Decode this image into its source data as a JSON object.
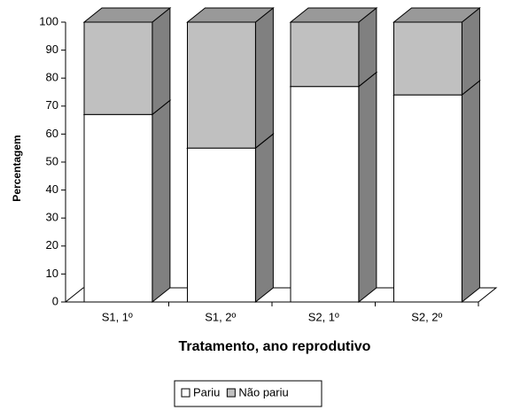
{
  "chart_data": {
    "type": "bar3d_stacked",
    "y_label": "Percentagem",
    "x_label": "Tratamento, ano reprodutivo",
    "categories": [
      "S1, 1º",
      "S1, 2º",
      "S2, 1º",
      "S2, 2º"
    ],
    "series": [
      {
        "name": "Pariu",
        "color": "#ffffff",
        "values": [
          67,
          55,
          77,
          74
        ]
      },
      {
        "name": "Não pariu",
        "color": "#c0c0c0",
        "values": [
          33,
          45,
          23,
          26
        ]
      }
    ],
    "ylim": [
      0,
      100
    ],
    "yticks": [
      0,
      10,
      20,
      30,
      40,
      50,
      60,
      70,
      80,
      90,
      100
    ],
    "grid": false,
    "legend": "bottom"
  }
}
